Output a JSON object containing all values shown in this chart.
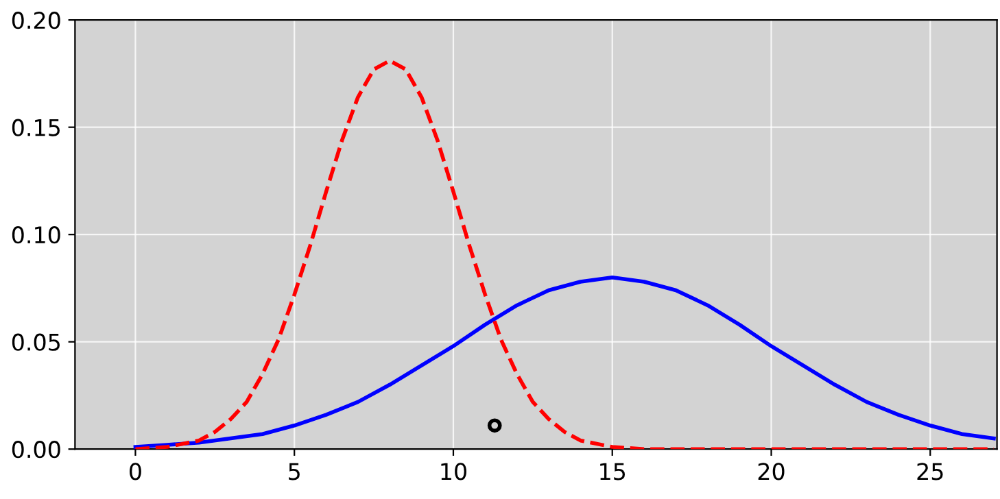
{
  "chart_data": {
    "type": "line",
    "xlim": [
      -1.9,
      27.1
    ],
    "ylim": [
      0,
      0.2
    ],
    "xticks": [
      0,
      5,
      10,
      15,
      20,
      25
    ],
    "yticks": [
      {
        "value": 0,
        "label": "0.00"
      },
      {
        "value": 0.05,
        "label": "0.05"
      },
      {
        "value": 0.1,
        "label": "0.10"
      },
      {
        "value": 0.15,
        "label": "0.15"
      },
      {
        "value": 0.2,
        "label": "0.20"
      }
    ],
    "grid": true,
    "marker": "none",
    "series": [
      {
        "color": "#0000ff",
        "line_style": "solid",
        "x": [
          0,
          1,
          2,
          3,
          4,
          5,
          6,
          7,
          8,
          9,
          10,
          11,
          12,
          13,
          14,
          15,
          16,
          17,
          18,
          19,
          20,
          21,
          22,
          23,
          24,
          25,
          26,
          27
        ],
        "values": [
          0.001,
          0.002,
          0.003,
          0.005,
          0.007,
          0.011,
          0.016,
          0.022,
          0.03,
          0.039,
          0.048,
          0.058,
          0.067,
          0.074,
          0.078,
          0.08,
          0.078,
          0.074,
          0.067,
          0.058,
          0.048,
          0.039,
          0.03,
          0.022,
          0.016,
          0.011,
          0.007,
          0.005
        ]
      },
      {
        "color": "#ff0000",
        "line_style": "dashed",
        "x": [
          0,
          1,
          2,
          2.5,
          3,
          3.5,
          4,
          4.5,
          5,
          5.5,
          6,
          6.5,
          7,
          7.5,
          8,
          8.5,
          9,
          9.5,
          10,
          10.5,
          11,
          11.5,
          12,
          12.5,
          13,
          13.5,
          14,
          15,
          16,
          17,
          19,
          21,
          23,
          25,
          27
        ],
        "values": [
          0.0,
          0.001,
          0.004,
          0.008,
          0.014,
          0.022,
          0.035,
          0.051,
          0.072,
          0.095,
          0.12,
          0.144,
          0.164,
          0.177,
          0.181,
          0.177,
          0.164,
          0.144,
          0.12,
          0.095,
          0.072,
          0.051,
          0.035,
          0.022,
          0.014,
          0.008,
          0.004,
          0.001,
          0.0,
          0,
          0,
          0,
          0,
          0,
          0
        ]
      },
      {
        "type": "scatter",
        "color": "#000000",
        "marker": "circle",
        "x": [
          11.3
        ],
        "values": [
          0.011
        ]
      }
    ]
  }
}
